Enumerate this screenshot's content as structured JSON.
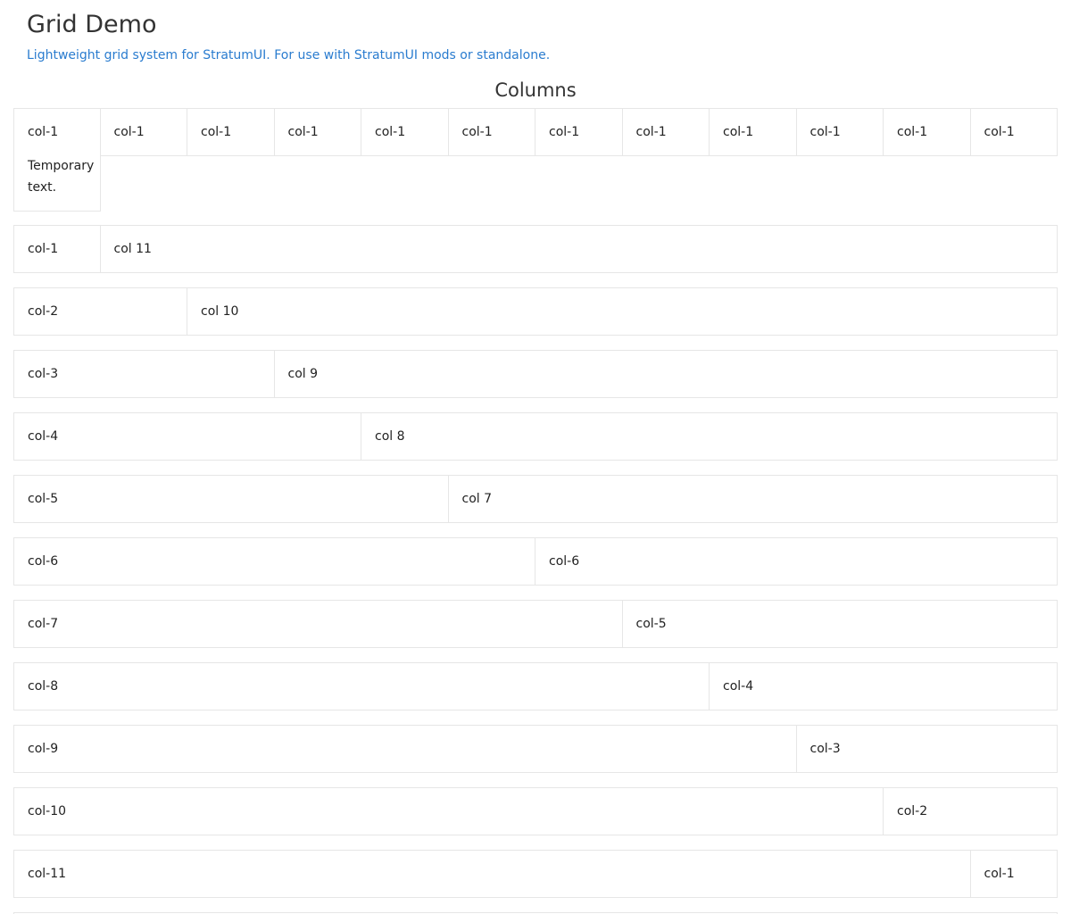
{
  "header": {
    "title": "Grid Demo",
    "subtitle": "Lightweight grid system for StratumUI. For use with StratumUI mods or standalone."
  },
  "section": {
    "title": "Columns"
  },
  "rows": [
    {
      "cells": [
        {
          "label": "col-1",
          "span": 1,
          "extra": "Temporary text."
        },
        {
          "label": "col-1",
          "span": 1
        },
        {
          "label": "col-1",
          "span": 1
        },
        {
          "label": "col-1",
          "span": 1
        },
        {
          "label": "col-1",
          "span": 1
        },
        {
          "label": "col-1",
          "span": 1
        },
        {
          "label": "col-1",
          "span": 1
        },
        {
          "label": "col-1",
          "span": 1
        },
        {
          "label": "col-1",
          "span": 1
        },
        {
          "label": "col-1",
          "span": 1
        },
        {
          "label": "col-1",
          "span": 1
        },
        {
          "label": "col-1",
          "span": 1
        }
      ]
    },
    {
      "cells": [
        {
          "label": "col-1",
          "span": 1
        },
        {
          "label": "col 11",
          "span": 11
        }
      ]
    },
    {
      "cells": [
        {
          "label": "col-2",
          "span": 2
        },
        {
          "label": "col 10",
          "span": 10
        }
      ]
    },
    {
      "cells": [
        {
          "label": "col-3",
          "span": 3
        },
        {
          "label": "col 9",
          "span": 9
        }
      ]
    },
    {
      "cells": [
        {
          "label": "col-4",
          "span": 4
        },
        {
          "label": "col 8",
          "span": 8
        }
      ]
    },
    {
      "cells": [
        {
          "label": "col-5",
          "span": 5
        },
        {
          "label": "col 7",
          "span": 7
        }
      ]
    },
    {
      "cells": [
        {
          "label": "col-6",
          "span": 6
        },
        {
          "label": "col-6",
          "span": 6
        }
      ]
    },
    {
      "cells": [
        {
          "label": "col-7",
          "span": 7
        },
        {
          "label": "col-5",
          "span": 5
        }
      ]
    },
    {
      "cells": [
        {
          "label": "col-8",
          "span": 8
        },
        {
          "label": "col-4",
          "span": 4
        }
      ]
    },
    {
      "cells": [
        {
          "label": "col-9",
          "span": 9
        },
        {
          "label": "col-3",
          "span": 3
        }
      ]
    },
    {
      "cells": [
        {
          "label": "col-10",
          "span": 10
        },
        {
          "label": "col-2",
          "span": 2
        }
      ]
    },
    {
      "cells": [
        {
          "label": "col-11",
          "span": 11
        },
        {
          "label": "col-1",
          "span": 1
        }
      ]
    },
    {
      "cells": [
        {
          "label": "",
          "span": 12
        }
      ]
    }
  ]
}
